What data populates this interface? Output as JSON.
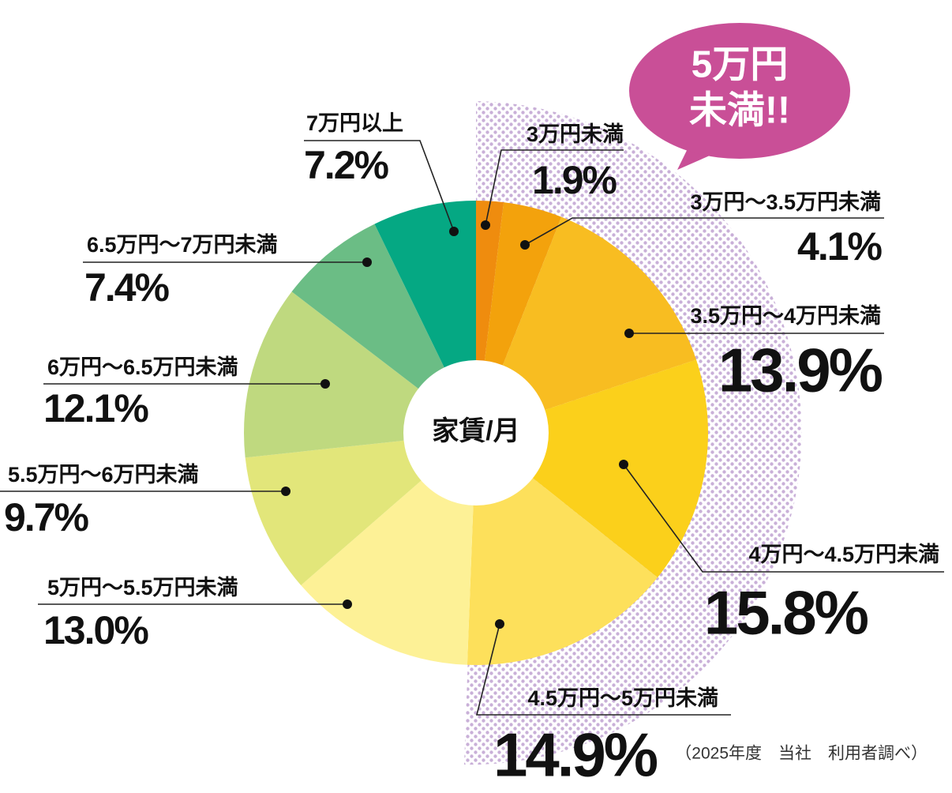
{
  "chart_data": {
    "type": "pie",
    "categories": [
      "3万円未満",
      "3万円～3.5万円未満",
      "3.5万円～4万円未満",
      "4万円～4.5万円未満",
      "4.5万円～5万円未満",
      "5万円～5.5万円未満",
      "5.5万円～6万円未満",
      "6万円～6.5万円未満",
      "6.5万円～7万円未満",
      "7万円以上"
    ],
    "values": [
      1.9,
      4.1,
      13.9,
      15.8,
      14.9,
      13.0,
      9.7,
      12.1,
      7.4,
      7.2
    ],
    "value_labels": [
      "1.9%",
      "4.1%",
      "13.9%",
      "15.8%",
      "14.9%",
      "13.0%",
      "9.7%",
      "12.1%",
      "7.4%",
      "7.2%"
    ],
    "colors": [
      "#ef8c0e",
      "#f3a20c",
      "#f8bd21",
      "#fbd01b",
      "#fde05b",
      "#fdf196",
      "#e2e67a",
      "#bfd97f",
      "#6bbd85",
      "#05a883"
    ],
    "center_label": "家賃/月",
    "callout": [
      "5万円",
      "未満!!"
    ],
    "note": "（2025年度　当社　利用者調べ）"
  }
}
